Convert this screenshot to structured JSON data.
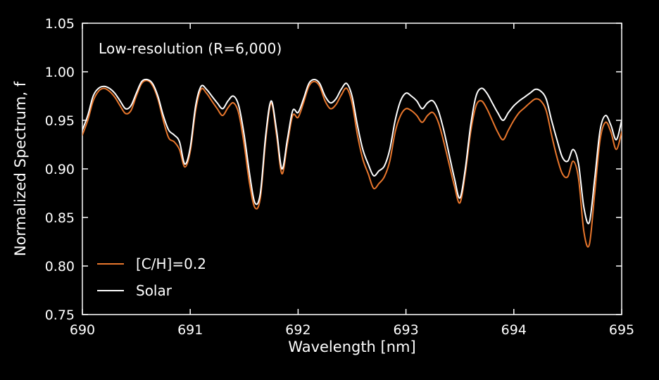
{
  "figure": {
    "background": "#000000",
    "axis_color": "#ffffff",
    "text_color": "#ffffff"
  },
  "chart_data": {
    "type": "line",
    "title": "",
    "annotation": "Low-resolution (R=6,000)",
    "xlabel": "Wavelength [nm]",
    "ylabel": "Normalized Spectrum, f",
    "xlim": [
      690,
      695
    ],
    "ylim": [
      0.75,
      1.05
    ],
    "xticks": [
      690,
      691,
      692,
      693,
      694,
      695
    ],
    "yticks": [
      0.75,
      0.8,
      0.85,
      0.9,
      0.95,
      1.0,
      1.05
    ],
    "ytick_labels": [
      "0.75",
      "0.80",
      "0.85",
      "0.90",
      "0.95",
      "1.00",
      "1.05"
    ],
    "grid": false,
    "legend_position": "lower-left",
    "x": [
      690.0,
      690.05,
      690.1,
      690.15,
      690.2,
      690.25,
      690.3,
      690.35,
      690.4,
      690.45,
      690.5,
      690.55,
      690.6,
      690.65,
      690.7,
      690.75,
      690.8,
      690.85,
      690.9,
      690.95,
      691.0,
      691.05,
      691.1,
      691.15,
      691.2,
      691.25,
      691.3,
      691.35,
      691.4,
      691.45,
      691.5,
      691.55,
      691.6,
      691.65,
      691.7,
      691.75,
      691.8,
      691.85,
      691.9,
      691.95,
      692.0,
      692.05,
      692.1,
      692.15,
      692.2,
      692.25,
      692.3,
      692.35,
      692.4,
      692.45,
      692.5,
      692.55,
      692.6,
      692.65,
      692.7,
      692.75,
      692.8,
      692.85,
      692.9,
      692.95,
      693.0,
      693.05,
      693.1,
      693.15,
      693.2,
      693.25,
      693.3,
      693.35,
      693.4,
      693.45,
      693.5,
      693.55,
      693.6,
      693.65,
      693.7,
      693.75,
      693.8,
      693.85,
      693.9,
      693.95,
      694.0,
      694.05,
      694.1,
      694.15,
      694.2,
      694.25,
      694.3,
      694.35,
      694.4,
      694.45,
      694.5,
      694.55,
      694.6,
      694.65,
      694.7,
      694.75,
      694.8,
      694.85,
      694.9,
      694.95,
      695.0
    ],
    "series": [
      {
        "name": "[C/H]=0.2",
        "color": "#E8762C",
        "values": [
          0.935,
          0.95,
          0.97,
          0.98,
          0.983,
          0.98,
          0.974,
          0.965,
          0.957,
          0.96,
          0.975,
          0.988,
          0.991,
          0.986,
          0.972,
          0.95,
          0.932,
          0.928,
          0.92,
          0.902,
          0.918,
          0.96,
          0.982,
          0.978,
          0.97,
          0.962,
          0.955,
          0.963,
          0.968,
          0.957,
          0.925,
          0.885,
          0.86,
          0.87,
          0.93,
          0.968,
          0.935,
          0.895,
          0.925,
          0.955,
          0.953,
          0.968,
          0.985,
          0.99,
          0.985,
          0.97,
          0.962,
          0.966,
          0.976,
          0.983,
          0.968,
          0.935,
          0.91,
          0.895,
          0.88,
          0.885,
          0.892,
          0.908,
          0.938,
          0.955,
          0.962,
          0.96,
          0.955,
          0.948,
          0.955,
          0.958,
          0.948,
          0.928,
          0.905,
          0.882,
          0.865,
          0.895,
          0.938,
          0.965,
          0.97,
          0.962,
          0.95,
          0.938,
          0.93,
          0.94,
          0.95,
          0.958,
          0.963,
          0.968,
          0.972,
          0.97,
          0.96,
          0.935,
          0.912,
          0.895,
          0.892,
          0.908,
          0.89,
          0.835,
          0.822,
          0.875,
          0.93,
          0.948,
          0.938,
          0.92,
          0.938
        ]
      },
      {
        "name": "Solar",
        "color": "#FFFFFF",
        "values": [
          0.94,
          0.955,
          0.975,
          0.983,
          0.985,
          0.983,
          0.978,
          0.97,
          0.962,
          0.965,
          0.978,
          0.99,
          0.992,
          0.988,
          0.975,
          0.955,
          0.94,
          0.935,
          0.928,
          0.905,
          0.922,
          0.965,
          0.985,
          0.982,
          0.975,
          0.968,
          0.962,
          0.97,
          0.975,
          0.965,
          0.935,
          0.895,
          0.865,
          0.875,
          0.935,
          0.97,
          0.94,
          0.9,
          0.93,
          0.96,
          0.958,
          0.972,
          0.988,
          0.992,
          0.988,
          0.975,
          0.968,
          0.972,
          0.982,
          0.988,
          0.975,
          0.945,
          0.92,
          0.905,
          0.893,
          0.898,
          0.903,
          0.92,
          0.95,
          0.97,
          0.978,
          0.975,
          0.97,
          0.962,
          0.968,
          0.97,
          0.96,
          0.94,
          0.915,
          0.89,
          0.87,
          0.9,
          0.945,
          0.975,
          0.983,
          0.978,
          0.968,
          0.958,
          0.95,
          0.958,
          0.965,
          0.97,
          0.974,
          0.978,
          0.982,
          0.98,
          0.972,
          0.95,
          0.93,
          0.912,
          0.908,
          0.92,
          0.905,
          0.86,
          0.845,
          0.89,
          0.94,
          0.955,
          0.945,
          0.93,
          0.95
        ]
      }
    ]
  }
}
